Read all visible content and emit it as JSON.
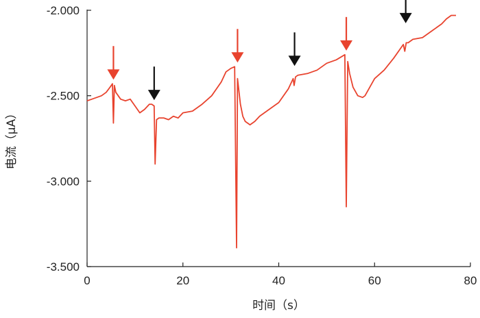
{
  "chart_data": {
    "type": "line",
    "title": "",
    "xlabel": "时间（s）",
    "ylabel": "电流（μA）",
    "xlim": [
      0,
      80
    ],
    "ylim": [
      -3.5,
      -2.0
    ],
    "x_ticks": [
      0,
      20,
      40,
      60,
      80
    ],
    "x_tick_labels": [
      "0",
      "20",
      "40",
      "60",
      "80"
    ],
    "y_ticks": [
      -2.0,
      -2.5,
      -3.0,
      -3.5
    ],
    "y_tick_labels": [
      "-2.000",
      "-2.500",
      "-3.000",
      "-3.500"
    ],
    "grid": false,
    "legend": "none",
    "line_color": "#e8432e",
    "series": [
      {
        "x": [
          0,
          1,
          2,
          3,
          4,
          4.8,
          5.3,
          5.5,
          5.7,
          6,
          7,
          8,
          9,
          10,
          11,
          12,
          13,
          13.5,
          14,
          14.2,
          14.5,
          15,
          16,
          17,
          18,
          19,
          20,
          22,
          24,
          26,
          28,
          29,
          30,
          30.8,
          31.2,
          31.4,
          31.6,
          32,
          32.5,
          33,
          34,
          35,
          36,
          38,
          40,
          42,
          43,
          43.2,
          43.5,
          44,
          46,
          48,
          50,
          52,
          53.8,
          54.1,
          54.4,
          54.8,
          55.5,
          56.5,
          57.5,
          58,
          59,
          60,
          62,
          64,
          66,
          66.3,
          66.6,
          67,
          68,
          70,
          72,
          74,
          75,
          76,
          77
        ],
        "y": [
          -2.53,
          -2.52,
          -2.51,
          -2.5,
          -2.48,
          -2.45,
          -2.43,
          -2.66,
          -2.44,
          -2.48,
          -2.52,
          -2.53,
          -2.52,
          -2.56,
          -2.6,
          -2.58,
          -2.55,
          -2.55,
          -2.56,
          -2.9,
          -2.64,
          -2.63,
          -2.63,
          -2.64,
          -2.62,
          -2.63,
          -2.6,
          -2.59,
          -2.55,
          -2.5,
          -2.42,
          -2.36,
          -2.34,
          -2.33,
          -3.39,
          -2.4,
          -2.45,
          -2.55,
          -2.62,
          -2.65,
          -2.67,
          -2.65,
          -2.62,
          -2.58,
          -2.54,
          -2.46,
          -2.4,
          -2.44,
          -2.39,
          -2.38,
          -2.37,
          -2.35,
          -2.31,
          -2.29,
          -2.26,
          -3.15,
          -2.3,
          -2.37,
          -2.45,
          -2.5,
          -2.51,
          -2.5,
          -2.45,
          -2.4,
          -2.35,
          -2.28,
          -2.2,
          -2.24,
          -2.19,
          -2.19,
          -2.17,
          -2.16,
          -2.12,
          -2.08,
          -2.05,
          -2.03,
          -2.03
        ]
      }
    ],
    "annotations": [
      {
        "type": "arrow-down",
        "color": "#e8432e",
        "x": 5.5,
        "y": -2.43
      },
      {
        "type": "arrow-down",
        "color": "#111111",
        "x": 14,
        "y": -2.55
      },
      {
        "type": "arrow-down",
        "color": "#e8432e",
        "x": 31.4,
        "y": -2.33
      },
      {
        "type": "arrow-down",
        "color": "#111111",
        "x": 43.3,
        "y": -2.35
      },
      {
        "type": "arrow-down",
        "color": "#e8432e",
        "x": 54.1,
        "y": -2.26
      },
      {
        "type": "arrow-down",
        "color": "#111111",
        "x": 66.5,
        "y": -2.1
      }
    ]
  }
}
